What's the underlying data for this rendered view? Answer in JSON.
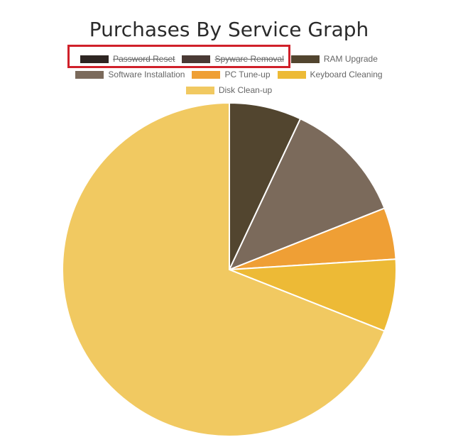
{
  "chart_data": {
    "type": "pie",
    "title": "Purchases By Service Graph",
    "categories": [
      "Password Reset",
      "Spyware Removal",
      "RAM Upgrade",
      "Software Installation",
      "PC Tune-up",
      "Keyboard Cleaning",
      "Disk Clean-up"
    ],
    "values": [
      0,
      0,
      7,
      12,
      5,
      7,
      69
    ],
    "hidden": [
      true,
      true,
      false,
      false,
      false,
      false,
      false
    ],
    "colors": [
      "#2e2522",
      "#4a3a35",
      "#52452f",
      "#7b6a5b",
      "#ef9f35",
      "#edba36",
      "#f1c961"
    ],
    "legend_position": "top",
    "annotation": "red box highlighting the Password Reset and Spyware Removal legend entries"
  }
}
